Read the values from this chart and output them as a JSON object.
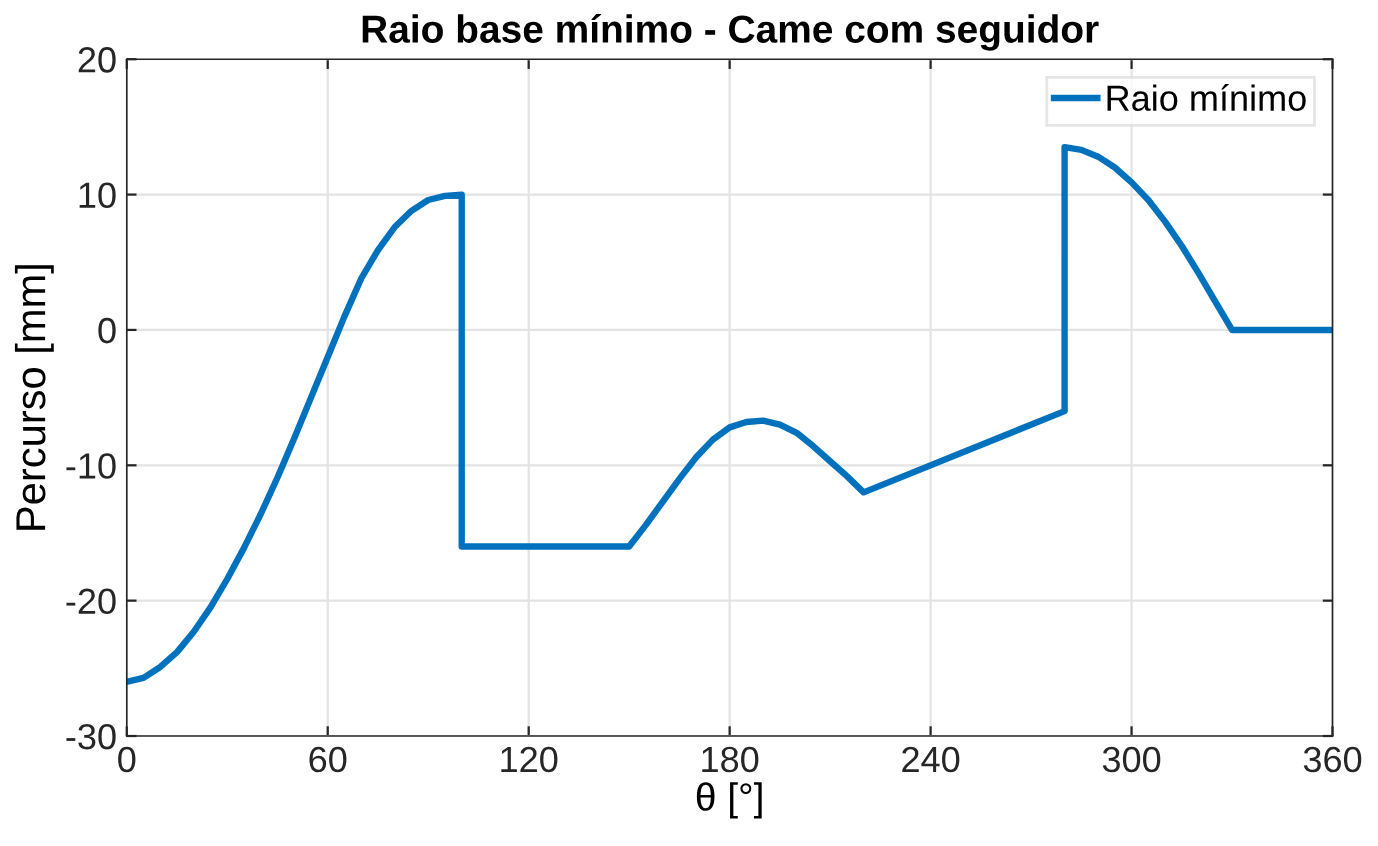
{
  "chart_data": {
    "type": "line",
    "title": "Raio base mínimo - Came com seguidor",
    "xlabel": "θ [°]",
    "ylabel": "Percurso [mm]",
    "xlim": [
      0,
      360
    ],
    "ylim": [
      -30,
      20
    ],
    "xticks": [
      0,
      60,
      120,
      180,
      240,
      300,
      360
    ],
    "yticks": [
      -30,
      -20,
      -10,
      0,
      10,
      20
    ],
    "grid": true,
    "legend": "top right",
    "series": [
      {
        "name": "Raio mínimo",
        "color": "#0072bd",
        "x": [
          0,
          5,
          10,
          15,
          20,
          25,
          30,
          35,
          40,
          45,
          50,
          55,
          60,
          65,
          70,
          75,
          80,
          85,
          90,
          95,
          100,
          100,
          150,
          155,
          160,
          165,
          170,
          175,
          180,
          185,
          190,
          195,
          200,
          205,
          210,
          215,
          220,
          280,
          280,
          285,
          290,
          295,
          300,
          305,
          310,
          315,
          320,
          325,
          330,
          360
        ],
        "values": [
          -26,
          -25.7,
          -24.9,
          -23.8,
          -22.3,
          -20.5,
          -18.4,
          -16.1,
          -13.6,
          -10.9,
          -8,
          -5,
          -2,
          1,
          3.8,
          5.9,
          7.6,
          8.8,
          9.6,
          9.9,
          10,
          -16,
          -16,
          -14.4,
          -12.7,
          -11,
          -9.4,
          -8.1,
          -7.2,
          -6.8,
          -6.7,
          -7,
          -7.6,
          -8.6,
          -9.7,
          -10.8,
          -12,
          -6,
          13.5,
          13.3,
          12.8,
          12,
          10.9,
          9.6,
          8,
          6.2,
          4.2,
          2.1,
          0,
          0
        ]
      }
    ]
  }
}
